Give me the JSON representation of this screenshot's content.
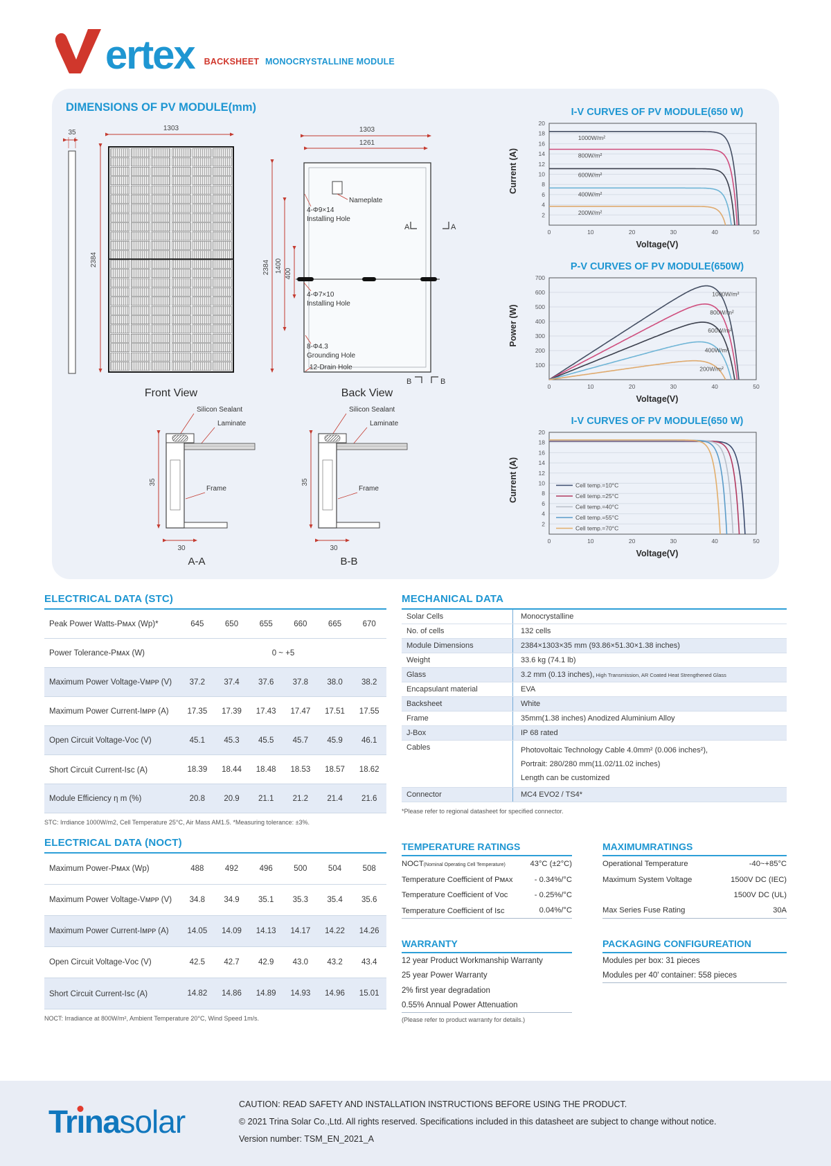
{
  "header": {
    "brand_initial": "V",
    "brand_rest": "ertex",
    "subtitle_red": "BACKSHEET",
    "subtitle_blue": "MONOCRYSTALLINE MODULE"
  },
  "dimensions": {
    "title": "DIMENSIONS OF PV MODULE(mm)",
    "front_caption": "Front View",
    "back_caption": "Back View",
    "aa_caption": "A-A",
    "bb_caption": "B-B",
    "labels": {
      "side_width": "35",
      "front_width": "1303",
      "front_height": "2384",
      "back_width": "1303",
      "back_inner_width": "1261",
      "back_height": "2384",
      "back_dim_1400": "1400",
      "back_dim_400": "400",
      "nameplate": "Nameplate",
      "install_hole_top_1": "4-Φ9×14",
      "install_hole_top_2": "Installing Hole",
      "install_hole_mid_1": "4-Φ7×10",
      "install_hole_mid_2": "Installing Hole",
      "grounding_1": "8-Φ4.3",
      "grounding_2": "Grounding Hole",
      "drain": "12-Drain Hole",
      "section_a": "A",
      "section_b": "B",
      "silicon_sealant": "Silicon Sealant",
      "laminate": "Laminate",
      "frame": "Frame",
      "cs_height": "35",
      "cs_width": "30"
    }
  },
  "chart_data": [
    {
      "type": "line",
      "curve_kind": "iv",
      "title": "I-V CURVES OF PV MODULE(650 W)",
      "xlabel": "Voltage(V)",
      "ylabel": "Current (A)",
      "xlim": [
        0,
        50
      ],
      "ylim": [
        0,
        20
      ],
      "xticks": [
        0,
        10,
        20,
        30,
        40,
        50
      ],
      "ytick": 2,
      "grid": "horizontal",
      "label_mode": "inline",
      "series": [
        {
          "name": "1000W/m²",
          "color": "#454f63",
          "isc": 18.4,
          "voc": 45.8
        },
        {
          "name": "800W/m²",
          "color": "#cf4d7d",
          "isc": 14.9,
          "voc": 45.4
        },
        {
          "name": "600W/m²",
          "color": "#3c404d",
          "isc": 11.1,
          "voc": 44.8
        },
        {
          "name": "400W/m²",
          "color": "#6fb5d6",
          "isc": 7.3,
          "voc": 44.0
        },
        {
          "name": "200W/m²",
          "color": "#dfaa6e",
          "isc": 3.7,
          "voc": 42.6
        }
      ]
    },
    {
      "type": "line",
      "curve_kind": "pv",
      "title": "P-V CURVES OF PV MODULE(650W)",
      "xlabel": "Voltage(V)",
      "ylabel": "Power (W)",
      "xlim": [
        0,
        50
      ],
      "ylim": [
        0,
        700
      ],
      "xticks": [
        0,
        10,
        20,
        30,
        40,
        50
      ],
      "ytick": 100,
      "grid": "horizontal",
      "label_mode": "peak",
      "series": [
        {
          "name": "1000W/m²",
          "color": "#454f63",
          "pmax": 645,
          "voc": 45.8
        },
        {
          "name": "800W/m²",
          "color": "#cf4d7d",
          "pmax": 520,
          "voc": 45.4
        },
        {
          "name": "600W/m²",
          "color": "#3c404d",
          "pmax": 395,
          "voc": 44.8
        },
        {
          "name": "400W/m²",
          "color": "#6fb5d6",
          "pmax": 260,
          "voc": 44.0
        },
        {
          "name": "200W/m²",
          "color": "#dfaa6e",
          "pmax": 130,
          "voc": 42.6
        }
      ]
    },
    {
      "type": "line",
      "curve_kind": "iv",
      "title": "I-V CURVES OF PV MODULE(650 W)",
      "xlabel": "Voltage(V)",
      "ylabel": "Current (A)",
      "xlim": [
        0,
        50
      ],
      "ylim": [
        0,
        20
      ],
      "xticks": [
        0,
        10,
        20,
        30,
        40,
        50
      ],
      "ytick": 2,
      "grid": "horizontal",
      "label_mode": "legend",
      "series": [
        {
          "name": "Cell temp.=10°C",
          "color": "#3d4c6e",
          "isc": 18.25,
          "voc": 47.3
        },
        {
          "name": "Cell temp.=25°C",
          "color": "#b23a60",
          "isc": 18.32,
          "voc": 45.9
        },
        {
          "name": "Cell temp.=40°C",
          "color": "#b8bfc9",
          "isc": 18.4,
          "voc": 44.4
        },
        {
          "name": "Cell temp.=55°C",
          "color": "#5b9cc9",
          "isc": 18.45,
          "voc": 42.9
        },
        {
          "name": "Cell temp.=70°C",
          "color": "#e2ae6b",
          "isc": 18.5,
          "voc": 41.3
        }
      ]
    }
  ],
  "electrical_stc": {
    "title": "ELECTRICAL DATA (STC)",
    "rows": [
      {
        "label": "Peak Power Watts-Pᴍᴀx (Wp)*",
        "values": [
          "645",
          "650",
          "655",
          "660",
          "665",
          "670"
        ]
      },
      {
        "label": "Power Tolerance-Pᴍᴀx (W)",
        "span_value": "0 ~ +5"
      },
      {
        "label": "Maximum Power Voltage-Vᴍᴘᴘ (V)",
        "values": [
          "37.2",
          "37.4",
          "37.6",
          "37.8",
          "38.0",
          "38.2"
        ]
      },
      {
        "label": "Maximum Power Current-Iᴍᴘᴘ (A)",
        "values": [
          "17.35",
          "17.39",
          "17.43",
          "17.47",
          "17.51",
          "17.55"
        ]
      },
      {
        "label": "Open Circuit Voltage-Vᴏᴄ (V)",
        "values": [
          "45.1",
          "45.3",
          "45.5",
          "45.7",
          "45.9",
          "46.1"
        ]
      },
      {
        "label": "Short Circuit Current-Iꜱᴄ (A)",
        "values": [
          "18.39",
          "18.44",
          "18.48",
          "18.53",
          "18.57",
          "18.62"
        ]
      },
      {
        "label": "Module Efficiency η m (%)",
        "values": [
          "20.8",
          "20.9",
          "21.1",
          "21.2",
          "21.4",
          "21.6"
        ]
      }
    ],
    "footnote": "STC: Irrdiance 1000W/m2, Cell Temperature 25°C, Air Mass AM1.5.   *Measuring tolerance: ±3%."
  },
  "electrical_noct": {
    "title": "ELECTRICAL DATA (NOCT)",
    "rows": [
      {
        "label": "Maximum Power-Pᴍᴀx (Wp)",
        "values": [
          "488",
          "492",
          "496",
          "500",
          "504",
          "508"
        ]
      },
      {
        "label": "Maximum Power Voltage-Vᴍᴘᴘ (V)",
        "values": [
          "34.8",
          "34.9",
          "35.1",
          "35.3",
          "35.4",
          "35.6"
        ]
      },
      {
        "label": "Maximum Power Current-Iᴍᴘᴘ (A)",
        "values": [
          "14.05",
          "14.09",
          "14.13",
          "14.17",
          "14.22",
          "14.26"
        ]
      },
      {
        "label": "Open Circuit Voltage-Vᴏᴄ (V)",
        "values": [
          "42.5",
          "42.7",
          "42.9",
          "43.0",
          "43.2",
          "43.4"
        ]
      },
      {
        "label": "Short Circuit Current-Iꜱᴄ (A)",
        "values": [
          "14.82",
          "14.86",
          "14.89",
          "14.93",
          "14.96",
          "15.01"
        ]
      }
    ],
    "footnote": "NOCT: Irradiance at 800W/m², Ambient Temperature 20°C, Wind Speed 1m/s."
  },
  "mechanical": {
    "title": "MECHANICAL DATA",
    "rows": [
      {
        "label": "Solar Cells",
        "value": "Monocrystalline"
      },
      {
        "label": "No. of cells",
        "value": "132 cells"
      },
      {
        "label": "Module Dimensions",
        "value": "2384×1303×35 mm (93.86×51.30×1.38 inches)"
      },
      {
        "label": "Weight",
        "value": "33.6 kg (74.1 lb)"
      },
      {
        "label": "Glass",
        "value": "3.2 mm (0.13 inches),",
        "value_small": " High Transmission, AR Coated Heat Strengthened Glass"
      },
      {
        "label": "Encapsulant material",
        "value": "EVA"
      },
      {
        "label": "Backsheet",
        "value": "White"
      },
      {
        "label": "Frame",
        "value": "35mm(1.38 inches)  Anodized  Aluminium Alloy"
      },
      {
        "label": "J-Box",
        "value": "IP 68 rated"
      },
      {
        "label": "Cables",
        "lines": [
          "Photovoltaic Technology Cable 4.0mm² (0.006 inches²),",
          "Portrait: 280/280 mm(11.02/11.02 inches)",
          "Length can be customized"
        ]
      },
      {
        "label": "Connector",
        "value": "MC4 EVO2 / TS4*"
      }
    ],
    "footnote": "*Please refer to regional datasheet for specified connector."
  },
  "temperature_ratings": {
    "title": "TEMPERATURE RATINGS",
    "rows": [
      {
        "label": "NOCT",
        "label_small": "(Nominal Operating Cell Temperature)",
        "value": "43°C (±2°C)"
      },
      {
        "label": "Temperature Coefficient of Pᴍᴀx",
        "value": "- 0.34%/°C"
      },
      {
        "label": "Temperature Coefficient of Vᴏᴄ",
        "value": "- 0.25%/°C"
      },
      {
        "label": "Temperature Coefficient of Iꜱᴄ",
        "value": "0.04%/°C"
      }
    ]
  },
  "maximum_ratings": {
    "title": "MAXIMUMRATINGS",
    "rows": [
      {
        "label": "Operational Temperature",
        "value": "-40~+85°C"
      },
      {
        "label": "Maximum System Voltage",
        "value": "1500V DC (IEC)"
      },
      {
        "label": "",
        "value": "1500V DC (UL)"
      },
      {
        "label": "Max Series Fuse Rating",
        "value": "30A"
      }
    ]
  },
  "warranty": {
    "title": "WARRANTY",
    "items": [
      "12 year Product Workmanship Warranty",
      "25 year Power Warranty",
      "2% first year degradation",
      "0.55% Annual Power Attenuation"
    ],
    "footnote": "(Please refer to product warranty for details.)"
  },
  "packaging": {
    "title": "PACKAGING CONFIGUREATION",
    "items": [
      "Modules per box: 31 pieces",
      "Modules per 40' container:  558 pieces"
    ]
  },
  "footer": {
    "logo_bold_a": "Tr",
    "logo_i": "ı",
    "logo_bold_b": "na",
    "logo_light": "solar",
    "caution": "CAUTION: READ SAFETY AND INSTALLATION INSTRUCTIONS BEFORE USING THE PRODUCT.",
    "copyright": "© 2021 Trina Solar Co.,Ltd. All rights reserved. Specifications included in this datasheet are subject to change without notice.",
    "version": "Version number: TSM_EN_2021_A"
  },
  "colors": {
    "accent_blue": "#1e96d2",
    "accent_red": "#d0372c",
    "stripe": "#e4ebf6",
    "panel": "#edf1f8"
  }
}
